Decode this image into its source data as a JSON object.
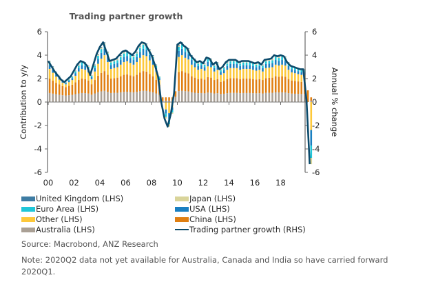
{
  "chart_data": {
    "type": "bar",
    "subtype": "stacked bar with line overlay",
    "title": "Trading partner growth",
    "ylabel_left": "Contribution to y/y",
    "ylabel_right": "Annual % change",
    "xlabel": "",
    "ylim_left": [
      -6,
      6
    ],
    "ylim_right": [
      -6,
      6
    ],
    "y_ticks": [
      "6",
      "4",
      "2",
      "0",
      "-2",
      "-4",
      "-6"
    ],
    "x_ticks": [
      "00",
      "02",
      "04",
      "06",
      "08",
      "10",
      "12",
      "14",
      "16",
      "18"
    ],
    "x_range": [
      "2000Q1",
      "2020Q2"
    ],
    "grid": false,
    "legend_position": "bottom",
    "series": [
      {
        "name": "United Kingdom (LHS)",
        "color": "#3e7ca3",
        "kind": "bar"
      },
      {
        "name": "Japan (LHS)",
        "color": "#d9d49a",
        "kind": "bar"
      },
      {
        "name": "Euro Area (LHS)",
        "color": "#1fc6d8",
        "kind": "bar"
      },
      {
        "name": "USA (LHS)",
        "color": "#1a7fc1",
        "kind": "bar"
      },
      {
        "name": "Other (LHS)",
        "color": "#fdc83a",
        "kind": "bar"
      },
      {
        "name": "China (LHS)",
        "color": "#e07f12",
        "kind": "bar"
      },
      {
        "name": "Australia (LHS)",
        "color": "#aaa095",
        "kind": "bar"
      },
      {
        "name": "Trading partner growth (RHS)",
        "color": "#0b4a6b",
        "kind": "line"
      }
    ],
    "line_series": {
      "name": "Trading partner growth (RHS)",
      "points": [
        [
          2000.0,
          3.5
        ],
        [
          2000.5,
          2.6
        ],
        [
          2001.0,
          1.9
        ],
        [
          2001.25,
          1.7
        ],
        [
          2001.75,
          2.2
        ],
        [
          2002.25,
          3.2
        ],
        [
          2002.5,
          3.5
        ],
        [
          2002.75,
          3.4
        ],
        [
          2003.0,
          3.1
        ],
        [
          2003.25,
          2.3
        ],
        [
          2003.75,
          4.1
        ],
        [
          2004.0,
          4.7
        ],
        [
          2004.25,
          5.1
        ],
        [
          2004.5,
          4.3
        ],
        [
          2004.75,
          3.5
        ],
        [
          2005.25,
          3.7
        ],
        [
          2005.75,
          4.3
        ],
        [
          2006.0,
          4.4
        ],
        [
          2006.5,
          4.0
        ],
        [
          2006.75,
          4.3
        ],
        [
          2007.0,
          4.8
        ],
        [
          2007.25,
          5.1
        ],
        [
          2007.5,
          5.0
        ],
        [
          2008.0,
          4.0
        ],
        [
          2008.25,
          3.2
        ],
        [
          2008.5,
          2.2
        ],
        [
          2008.75,
          0.0
        ],
        [
          2009.0,
          -1.4
        ],
        [
          2009.25,
          -2.1
        ],
        [
          2009.5,
          -1.0
        ],
        [
          2009.75,
          0.8
        ],
        [
          2010.0,
          4.9
        ],
        [
          2010.25,
          5.1
        ],
        [
          2010.5,
          4.8
        ],
        [
          2010.75,
          4.6
        ],
        [
          2011.0,
          4.0
        ],
        [
          2011.5,
          3.4
        ],
        [
          2011.75,
          3.5
        ],
        [
          2012.0,
          3.3
        ],
        [
          2012.25,
          3.8
        ],
        [
          2012.5,
          3.7
        ],
        [
          2012.75,
          3.2
        ],
        [
          2013.0,
          3.4
        ],
        [
          2013.25,
          2.8
        ],
        [
          2013.5,
          3.0
        ],
        [
          2013.75,
          3.4
        ],
        [
          2014.0,
          3.6
        ],
        [
          2014.5,
          3.6
        ],
        [
          2014.75,
          3.4
        ],
        [
          2015.0,
          3.5
        ],
        [
          2015.5,
          3.5
        ],
        [
          2016.0,
          3.3
        ],
        [
          2016.25,
          3.4
        ],
        [
          2016.5,
          3.2
        ],
        [
          2016.75,
          3.6
        ],
        [
          2017.25,
          3.7
        ],
        [
          2017.5,
          4.0
        ],
        [
          2017.75,
          3.9
        ],
        [
          2018.0,
          4.0
        ],
        [
          2018.25,
          3.9
        ],
        [
          2018.5,
          3.4
        ],
        [
          2018.75,
          3.1
        ],
        [
          2019.25,
          2.9
        ],
        [
          2019.5,
          2.8
        ],
        [
          2019.75,
          2.8
        ],
        [
          2020.0,
          0.2
        ],
        [
          2020.25,
          -5.3
        ]
      ]
    }
  },
  "legend": {
    "items": [
      {
        "label": "United Kingdom (LHS)",
        "color": "#3e7ca3",
        "type": "box"
      },
      {
        "label": "Japan (LHS)",
        "color": "#d9d49a",
        "type": "box"
      },
      {
        "label": "Euro Area (LHS)",
        "color": "#1fc6d8",
        "type": "box"
      },
      {
        "label": "USA (LHS)",
        "color": "#1a7fc1",
        "type": "box"
      },
      {
        "label": "Other (LHS)",
        "color": "#fdc83a",
        "type": "box"
      },
      {
        "label": "China (LHS)",
        "color": "#e07f12",
        "type": "box"
      },
      {
        "label": "Australia (LHS)",
        "color": "#aaa095",
        "type": "box"
      },
      {
        "label": "Trading partner growth (RHS)",
        "color": "#0b4a6b",
        "type": "line"
      }
    ]
  },
  "footer": {
    "source": "Source: Macrobond, ANZ Research",
    "note": "Note: 2020Q2 data not yet available for Australia, Canada and India so have carried forward 2020Q1."
  }
}
